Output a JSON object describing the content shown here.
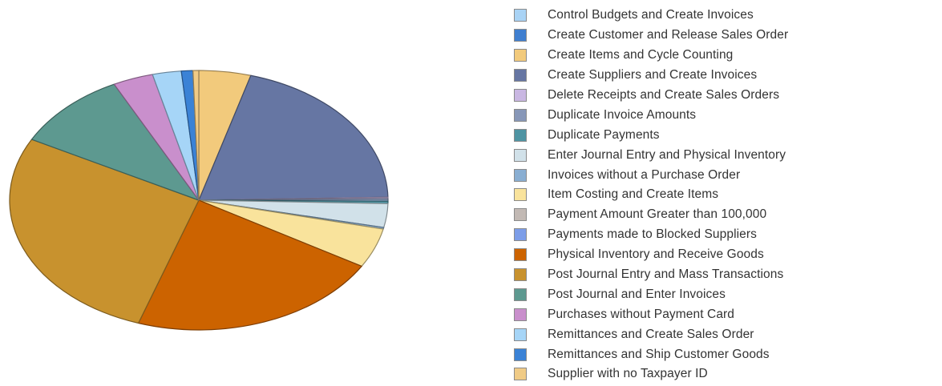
{
  "chart_data": {
    "type": "pie",
    "title": "",
    "legend_position": "right",
    "slices": [
      {
        "label": "Control Budgets and Create Invoices",
        "value": 0.0,
        "color": "#a9d3f5"
      },
      {
        "label": "Create Customer and Release Sales Order",
        "value": 0.0,
        "color": "#3f7fd0"
      },
      {
        "label": "Create Items and Cycle Counting",
        "value": 4.5,
        "color": "#f2ca7c"
      },
      {
        "label": "Create Suppliers and Create Invoices",
        "value": 20.5,
        "color": "#6676a3"
      },
      {
        "label": "Delete Receipts and Create Sales Orders",
        "value": 0.2,
        "color": "#c9b7e2"
      },
      {
        "label": "Duplicate Invoice Amounts",
        "value": 0.3,
        "color": "#8797b8"
      },
      {
        "label": "Duplicate Payments",
        "value": 0.3,
        "color": "#4e94a3"
      },
      {
        "label": "Enter Journal Entry and Physical Inventory",
        "value": 3.0,
        "color": "#d1e1e9"
      },
      {
        "label": "Invoices without a Purchase Order",
        "value": 0.2,
        "color": "#89aed2"
      },
      {
        "label": "Item Costing and Create Items",
        "value": 5.0,
        "color": "#f9e39c"
      },
      {
        "label": "Payment Amount Greater than 100,000",
        "value": 0.0,
        "color": "#c2b9b4"
      },
      {
        "label": "Payments made to Blocked Suppliers",
        "value": 0.0,
        "color": "#7c9de8"
      },
      {
        "label": "Physical Inventory and Receive Goods",
        "value": 22.0,
        "color": "#cc6300"
      },
      {
        "label": "Post Journal Entry and Mass Transactions",
        "value": 28.0,
        "color": "#c8922e"
      },
      {
        "label": "Post Journal and Enter Invoices",
        "value": 10.0,
        "color": "#5d9990"
      },
      {
        "label": "Purchases without Payment Card",
        "value": 3.5,
        "color": "#c98fcc"
      },
      {
        "label": "Remittances and Create Sales Order",
        "value": 2.5,
        "color": "#a6d5f7"
      },
      {
        "label": "Remittances and Ship Customer Goods",
        "value": 1.0,
        "color": "#3a82d6"
      },
      {
        "label": "Supplier with no Taxpayer ID",
        "value": 0.5,
        "color": "#f0cb86"
      }
    ]
  }
}
